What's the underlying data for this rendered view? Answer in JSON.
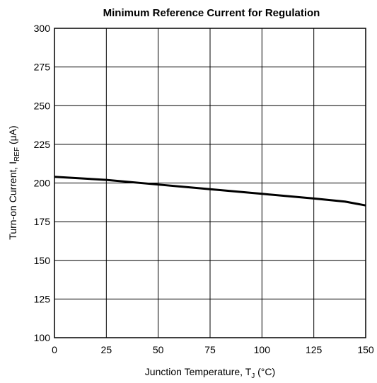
{
  "chart_data": {
    "type": "line",
    "title": "Minimum Reference Current for Regulation",
    "xlabel": {
      "main": "Junction Temperature, T",
      "sub": "J",
      "suffix": " (°C)"
    },
    "ylabel": {
      "main": "Turn-on Current, I",
      "sub": "REF",
      "suffix": " (μA)"
    },
    "xlim": [
      0,
      150
    ],
    "ylim": [
      100,
      300
    ],
    "xticks": [
      0,
      25,
      50,
      75,
      100,
      125,
      150
    ],
    "yticks": [
      100,
      125,
      150,
      175,
      200,
      225,
      250,
      275,
      300
    ],
    "grid": true,
    "series": [
      {
        "x": [
          0,
          25,
          50,
          75,
          100,
          125,
          140,
          150
        ],
        "y": [
          204,
          202,
          199,
          196,
          193,
          190,
          188,
          185.5
        ]
      }
    ]
  }
}
